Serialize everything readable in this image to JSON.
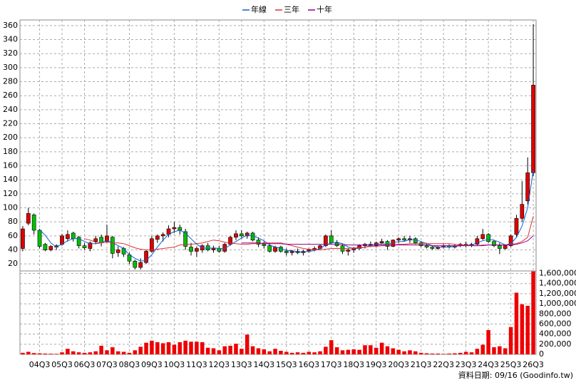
{
  "chart_data": {
    "type": "candlestick",
    "categories": [
      null,
      null,
      null,
      "04Q3",
      null,
      null,
      null,
      "05Q3",
      null,
      null,
      null,
      "06Q3",
      null,
      null,
      null,
      "07Q3",
      null,
      null,
      null,
      "08Q3",
      null,
      null,
      null,
      "09Q3",
      null,
      null,
      null,
      "10Q3",
      null,
      null,
      null,
      "11Q3",
      null,
      null,
      null,
      "12Q3",
      null,
      null,
      null,
      "13Q3",
      null,
      null,
      null,
      "14Q3",
      null,
      null,
      null,
      "15Q3",
      null,
      null,
      null,
      "16Q3",
      null,
      null,
      null,
      "17Q3",
      null,
      null,
      null,
      "18Q3",
      null,
      null,
      null,
      "19Q3",
      null,
      null,
      null,
      "20Q3",
      null,
      null,
      null,
      "21Q3",
      null,
      null,
      null,
      "22Q3",
      null,
      null,
      null,
      "23Q3",
      null,
      null,
      null,
      "24Q3",
      null,
      null,
      null,
      "25Q3",
      null,
      null,
      null,
      "26Q3"
    ],
    "open": [
      42,
      78,
      90,
      68,
      48,
      40,
      44,
      48,
      56,
      64,
      58,
      46,
      42,
      52,
      58,
      52,
      58,
      36,
      42,
      33,
      24,
      15,
      22,
      38,
      55,
      60,
      62,
      70,
      72,
      66,
      44,
      38,
      40,
      46,
      40,
      42,
      38,
      48,
      58,
      63,
      60,
      64,
      54,
      48,
      46,
      38,
      44,
      38,
      36,
      38,
      36,
      38,
      40,
      42,
      46,
      60,
      50,
      46,
      38,
      40,
      42,
      46,
      48,
      46,
      50,
      52,
      45,
      54,
      56,
      54,
      56,
      50,
      46,
      44,
      42,
      44,
      46,
      44,
      46,
      48,
      46,
      48,
      56,
      62,
      52,
      46,
      42,
      46,
      62,
      85,
      110,
      150
    ],
    "high": [
      74,
      100,
      92,
      70,
      50,
      47,
      48,
      63,
      68,
      66,
      60,
      50,
      52,
      60,
      62,
      76,
      60,
      45,
      44,
      36,
      26,
      28,
      40,
      60,
      62,
      65,
      75,
      80,
      76,
      70,
      50,
      45,
      48,
      50,
      46,
      46,
      50,
      60,
      68,
      68,
      66,
      66,
      58,
      52,
      50,
      46,
      46,
      42,
      40,
      42,
      40,
      42,
      45,
      48,
      62,
      68,
      54,
      48,
      42,
      44,
      48,
      50,
      52,
      52,
      56,
      54,
      55,
      58,
      60,
      60,
      58,
      52,
      50,
      46,
      46,
      48,
      48,
      48,
      50,
      52,
      50,
      60,
      70,
      64,
      54,
      50,
      48,
      62,
      90,
      138,
      172,
      362
    ],
    "low": [
      38,
      75,
      62,
      42,
      38,
      38,
      40,
      46,
      52,
      52,
      42,
      40,
      38,
      48,
      45,
      50,
      28,
      30,
      30,
      20,
      12,
      12,
      20,
      36,
      50,
      52,
      58,
      64,
      62,
      40,
      32,
      30,
      36,
      38,
      36,
      36,
      36,
      46,
      54,
      56,
      56,
      52,
      44,
      42,
      36,
      36,
      36,
      32,
      32,
      34,
      32,
      36,
      38,
      40,
      44,
      48,
      44,
      34,
      32,
      36,
      40,
      42,
      44,
      44,
      48,
      40,
      44,
      50,
      52,
      50,
      48,
      44,
      42,
      40,
      40,
      42,
      42,
      42,
      44,
      44,
      44,
      46,
      54,
      50,
      44,
      34,
      40,
      44,
      58,
      80,
      105,
      145
    ],
    "close": [
      70,
      92,
      68,
      45,
      40,
      45,
      46,
      60,
      62,
      56,
      46,
      43,
      50,
      56,
      50,
      60,
      35,
      40,
      34,
      24,
      15,
      22,
      38,
      56,
      60,
      62,
      70,
      72,
      68,
      45,
      38,
      42,
      46,
      40,
      42,
      38,
      48,
      58,
      63,
      60,
      64,
      54,
      48,
      46,
      38,
      44,
      38,
      36,
      38,
      36,
      38,
      40,
      42,
      46,
      60,
      50,
      46,
      38,
      40,
      42,
      46,
      48,
      46,
      50,
      52,
      45,
      54,
      56,
      54,
      56,
      50,
      46,
      44,
      42,
      44,
      46,
      44,
      46,
      48,
      46,
      48,
      56,
      62,
      52,
      46,
      42,
      46,
      60,
      85,
      105,
      150,
      275
    ],
    "up_color": "#e00000",
    "down_color": "#00c000",
    "series": [
      {
        "name": "年線",
        "color": "#1060d0",
        "values": [
          null,
          null,
          null,
          69,
          61,
          50,
          44,
          48,
          53,
          56,
          56,
          52,
          49,
          49,
          50,
          54,
          50,
          46,
          42,
          33,
          28,
          24,
          25,
          33,
          44,
          54,
          62,
          66,
          68,
          64,
          56,
          48,
          43,
          42,
          43,
          42,
          42,
          47,
          52,
          57,
          61,
          60,
          57,
          53,
          47,
          44,
          42,
          39,
          39,
          37,
          37,
          38,
          39,
          42,
          47,
          50,
          51,
          49,
          44,
          42,
          42,
          44,
          46,
          48,
          49,
          48,
          50,
          52,
          52,
          55,
          54,
          52,
          49,
          46,
          44,
          44,
          44,
          45,
          46,
          46,
          47,
          50,
          53,
          55,
          54,
          51,
          47,
          49,
          58,
          74,
          100,
          154
        ]
      },
      {
        "name": "三年",
        "color": "#e03030",
        "values": [
          null,
          null,
          null,
          null,
          null,
          null,
          null,
          null,
          null,
          null,
          null,
          56,
          54,
          51,
          50,
          51,
          50,
          50,
          49,
          46,
          43,
          41,
          40,
          40,
          41,
          42,
          43,
          44,
          47,
          48,
          48,
          49,
          50,
          52,
          54,
          53,
          51,
          50,
          49,
          48,
          48,
          49,
          49,
          50,
          50,
          50,
          50,
          48,
          46,
          44,
          42,
          41,
          40,
          40,
          41,
          42,
          42,
          42,
          42,
          43,
          43,
          44,
          45,
          45,
          46,
          46,
          47,
          48,
          48,
          49,
          49,
          49,
          49,
          49,
          49,
          49,
          49,
          48,
          47,
          47,
          46,
          46,
          47,
          47,
          47,
          47,
          47,
          48,
          49,
          52,
          58,
          88
        ]
      },
      {
        "name": "十年",
        "color": "#900090",
        "values": [
          null,
          null,
          null,
          null,
          null,
          null,
          null,
          null,
          null,
          null,
          null,
          null,
          null,
          null,
          null,
          null,
          null,
          null,
          null,
          null,
          null,
          null,
          null,
          null,
          null,
          null,
          null,
          null,
          null,
          null,
          null,
          null,
          null,
          null,
          null,
          null,
          null,
          null,
          null,
          50,
          50,
          50,
          50,
          49,
          49,
          49,
          49,
          48,
          48,
          48,
          48,
          48,
          48,
          48,
          48,
          48,
          48,
          48,
          47,
          47,
          47,
          47,
          47,
          47,
          47,
          47,
          47,
          47,
          47,
          47,
          47,
          47,
          47,
          46,
          46,
          46,
          46,
          46,
          46,
          46,
          46,
          46,
          46,
          47,
          47,
          47,
          47,
          47,
          48,
          50,
          53,
          60
        ]
      }
    ],
    "ylim": [
      10,
      368
    ],
    "yticks": [
      20,
      40,
      60,
      80,
      100,
      120,
      140,
      160,
      180,
      200,
      220,
      240,
      260,
      280,
      300,
      320,
      340,
      360
    ],
    "grid": true,
    "volume": {
      "color": "#ee0000",
      "values": [
        30000,
        50000,
        25000,
        20000,
        15000,
        12000,
        10000,
        40000,
        110000,
        60000,
        40000,
        30000,
        40000,
        60000,
        170000,
        80000,
        140000,
        60000,
        50000,
        30000,
        80000,
        150000,
        230000,
        270000,
        240000,
        220000,
        240000,
        190000,
        240000,
        270000,
        250000,
        250000,
        240000,
        130000,
        120000,
        80000,
        160000,
        170000,
        210000,
        110000,
        390000,
        160000,
        120000,
        100000,
        60000,
        110000,
        70000,
        50000,
        30000,
        40000,
        30000,
        50000,
        40000,
        60000,
        150000,
        280000,
        140000,
        80000,
        90000,
        100000,
        90000,
        180000,
        180000,
        130000,
        230000,
        160000,
        120000,
        90000,
        60000,
        80000,
        60000,
        30000,
        20000,
        15000,
        15000,
        10000,
        15000,
        20000,
        30000,
        50000,
        40000,
        110000,
        190000,
        480000,
        140000,
        160000,
        120000,
        540000,
        1220000,
        990000,
        960000,
        1640000
      ],
      "ylim": [
        0,
        1650000
      ],
      "yticks": [
        0,
        {
          "value": 200000,
          "label": "200,000"
        },
        {
          "value": 400000,
          "label": "400,000"
        },
        {
          "value": 600000,
          "label": "600,000"
        },
        {
          "value": 800000,
          "label": "800,000"
        },
        {
          "value": 1000000,
          "label": "1,000,000"
        },
        {
          "value": 1200000,
          "label": "1,200,000"
        },
        {
          "value": 1400000,
          "label": "1,400,000"
        },
        {
          "value": 1600000,
          "label": "1,600,000"
        }
      ]
    },
    "source": "資料日期: 09/16 (Goodinfo.tw)"
  }
}
